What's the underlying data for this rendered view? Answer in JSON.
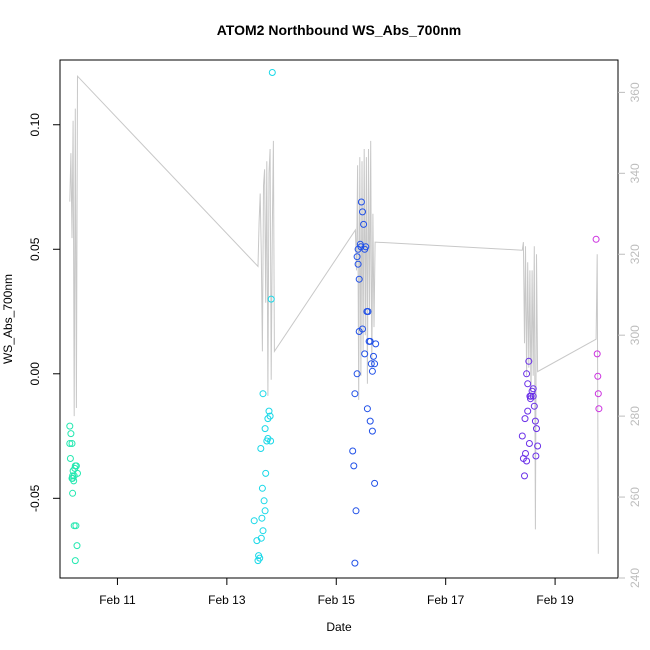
{
  "chart_data": {
    "type": "scatter",
    "title": "ATOM2 Northbound WS_Abs_700nm",
    "xlabel": "Date",
    "ylabel": "WS_Abs_700nm",
    "x_unit": "days from Feb 10 00:00",
    "xlim": [
      -0.05,
      10.15
    ],
    "ylim": [
      -0.082,
      0.126
    ],
    "y2lim": [
      240,
      368
    ],
    "x_ticks": [
      {
        "value": 1,
        "label": "Feb 11"
      },
      {
        "value": 3,
        "label": "Feb 13"
      },
      {
        "value": 5,
        "label": "Feb 15"
      },
      {
        "value": 7,
        "label": "Feb 17"
      },
      {
        "value": 9,
        "label": "Feb 19"
      }
    ],
    "y_ticks": [
      {
        "value": -0.05,
        "label": "-0.05"
      },
      {
        "value": 0.0,
        "label": "0.00"
      },
      {
        "value": 0.05,
        "label": "0.05"
      },
      {
        "value": 0.1,
        "label": "0.10"
      }
    ],
    "y2_ticks": [
      {
        "value": 240,
        "label": "240"
      },
      {
        "value": 260,
        "label": "260"
      },
      {
        "value": 280,
        "label": "280"
      },
      {
        "value": 300,
        "label": "300"
      },
      {
        "value": 320,
        "label": "320"
      },
      {
        "value": 340,
        "label": "340"
      },
      {
        "value": 360,
        "label": "360"
      }
    ],
    "grid": false,
    "line_series": {
      "color": "#c8c8c8",
      "points": [
        [
          0.13,
          333
        ],
        [
          0.15,
          345
        ],
        [
          0.17,
          324
        ],
        [
          0.19,
          353
        ],
        [
          0.21,
          280
        ],
        [
          0.23,
          356
        ],
        [
          0.25,
          282
        ],
        [
          0.27,
          364
        ],
        [
          3.57,
          317
        ],
        [
          3.59,
          328
        ],
        [
          3.61,
          335
        ],
        [
          3.63,
          320
        ],
        [
          3.65,
          296
        ],
        [
          3.67,
          337
        ],
        [
          3.69,
          341
        ],
        [
          3.71,
          308
        ],
        [
          3.73,
          343
        ],
        [
          3.75,
          285
        ],
        [
          3.77,
          340
        ],
        [
          3.79,
          346
        ],
        [
          3.81,
          289
        ],
        [
          3.83,
          326
        ],
        [
          3.85,
          348
        ],
        [
          3.87,
          296
        ],
        [
          5.35,
          326
        ],
        [
          5.37,
          316
        ],
        [
          5.39,
          342
        ],
        [
          5.41,
          284
        ],
        [
          5.43,
          344
        ],
        [
          5.45,
          290
        ],
        [
          5.47,
          343
        ],
        [
          5.49,
          296
        ],
        [
          5.51,
          346
        ],
        [
          5.53,
          300
        ],
        [
          5.55,
          344
        ],
        [
          5.57,
          288
        ],
        [
          5.59,
          346
        ],
        [
          5.61,
          305
        ],
        [
          5.63,
          348
        ],
        [
          5.65,
          292
        ],
        [
          5.67,
          330
        ],
        [
          5.69,
          302
        ],
        [
          5.71,
          323
        ],
        [
          8.4,
          321
        ],
        [
          8.42,
          323
        ],
        [
          8.44,
          298
        ],
        [
          8.46,
          322
        ],
        [
          8.48,
          290
        ],
        [
          8.5,
          318
        ],
        [
          8.52,
          292
        ],
        [
          8.54,
          316
        ],
        [
          8.56,
          284
        ],
        [
          8.58,
          316
        ],
        [
          8.6,
          290
        ],
        [
          8.62,
          322
        ],
        [
          8.64,
          252
        ],
        [
          8.66,
          320
        ],
        [
          8.68,
          291
        ],
        [
          9.75,
          299
        ],
        [
          9.77,
          320
        ],
        [
          9.79,
          246
        ]
      ]
    },
    "series": [
      {
        "color": "#22e8b0",
        "x": [
          0.13,
          0.15,
          0.13,
          0.17,
          0.14,
          0.19,
          0.22,
          0.18,
          0.21,
          0.18,
          0.2,
          0.23,
          0.18,
          0.25,
          0.26,
          0.23,
          0.24,
          0.21,
          0.17,
          0.27
        ],
        "y": [
          -0.021,
          -0.024,
          -0.028,
          -0.028,
          -0.034,
          -0.039,
          -0.038,
          -0.041,
          -0.041,
          -0.042,
          -0.043,
          -0.037,
          -0.048,
          -0.037,
          -0.069,
          -0.075,
          -0.061,
          -0.061,
          -0.042,
          -0.04
        ]
      },
      {
        "color": "#19d8e8",
        "x": [
          3.5,
          3.55,
          3.57,
          3.6,
          3.58,
          3.63,
          3.64,
          3.66,
          3.68,
          3.65,
          3.7,
          3.71,
          3.73,
          3.75,
          3.77,
          3.79,
          3.8,
          3.83,
          3.81,
          3.75,
          3.7,
          3.66,
          3.62
        ],
        "y": [
          -0.059,
          -0.067,
          -0.075,
          -0.074,
          -0.073,
          -0.066,
          -0.058,
          -0.063,
          -0.051,
          -0.046,
          -0.055,
          -0.04,
          -0.027,
          -0.018,
          -0.015,
          -0.017,
          -0.027,
          0.121,
          0.03,
          -0.026,
          -0.022,
          -0.008,
          -0.03
        ]
      },
      {
        "color": "#2050e8",
        "x": [
          5.3,
          5.32,
          5.34,
          5.36,
          5.38,
          5.4,
          5.42,
          5.44,
          5.46,
          5.48,
          5.5,
          5.52,
          5.54,
          5.56,
          5.58,
          5.6,
          5.62,
          5.64,
          5.66,
          5.68,
          5.7,
          5.72,
          5.34,
          5.38,
          5.42,
          5.48,
          5.52,
          5.57,
          5.62,
          5.66,
          5.7,
          5.45,
          5.4
        ],
        "y": [
          -0.031,
          -0.037,
          -0.076,
          -0.055,
          0.047,
          0.044,
          0.038,
          0.052,
          0.069,
          0.065,
          0.06,
          0.05,
          0.051,
          0.025,
          0.025,
          0.013,
          0.013,
          0.004,
          0.001,
          0.007,
          0.004,
          0.012,
          -0.008,
          0.0,
          0.017,
          0.018,
          0.008,
          -0.014,
          -0.019,
          -0.023,
          -0.044,
          0.051,
          0.05
        ]
      },
      {
        "color": "#6a30e8",
        "x": [
          8.4,
          8.42,
          8.44,
          8.46,
          8.48,
          8.5,
          8.52,
          8.54,
          8.56,
          8.58,
          8.6,
          8.62,
          8.64,
          8.66,
          8.68,
          8.45,
          8.5,
          8.55,
          8.6,
          8.65,
          8.48,
          8.53
        ],
        "y": [
          -0.025,
          -0.034,
          -0.041,
          -0.032,
          -0.035,
          -0.015,
          0.005,
          -0.009,
          -0.009,
          -0.007,
          -0.006,
          -0.013,
          -0.019,
          -0.022,
          -0.029,
          -0.018,
          -0.004,
          -0.01,
          -0.009,
          -0.033,
          0.0,
          -0.028
        ]
      },
      {
        "color": "#cc30e0",
        "x": [
          9.75,
          9.77,
          9.78,
          9.79,
          9.8
        ],
        "y": [
          0.054,
          0.008,
          -0.001,
          -0.008,
          -0.014
        ]
      }
    ]
  }
}
